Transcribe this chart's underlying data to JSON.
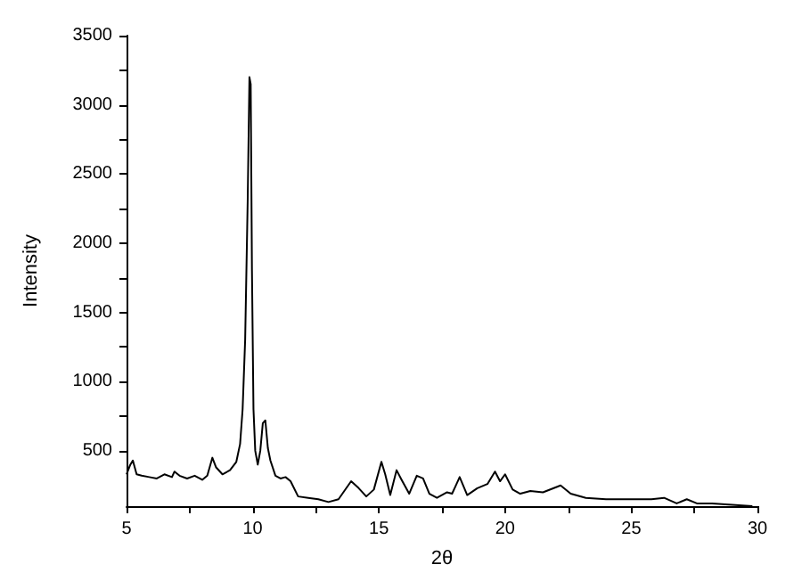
{
  "chart_data": {
    "type": "line",
    "xlabel": "2θ",
    "ylabel": "Intensity",
    "color": "#000000",
    "marker": "none",
    "grid": false,
    "x": [
      5.0,
      5.15,
      5.25,
      5.4,
      5.6,
      5.9,
      6.2,
      6.5,
      6.8,
      6.9,
      7.1,
      7.4,
      7.7,
      8.0,
      8.2,
      8.4,
      8.55,
      8.8,
      9.1,
      9.35,
      9.5,
      9.6,
      9.7,
      9.8,
      9.87,
      9.92,
      9.97,
      10.03,
      10.1,
      10.2,
      10.3,
      10.4,
      10.5,
      10.6,
      10.7,
      10.9,
      11.1,
      11.3,
      11.5,
      11.8,
      12.2,
      12.6,
      13.0,
      13.4,
      13.9,
      14.2,
      14.5,
      14.8,
      15.1,
      15.25,
      15.45,
      15.7,
      15.9,
      16.2,
      16.5,
      16.75,
      17.0,
      17.3,
      17.7,
      17.9,
      18.2,
      18.5,
      18.9,
      19.3,
      19.6,
      19.8,
      20.0,
      20.3,
      20.6,
      21.0,
      21.5,
      22.2,
      22.6,
      23.2,
      24.0,
      25.0,
      25.8,
      26.3,
      26.8,
      27.2,
      27.6,
      28.2,
      29.0,
      29.8
    ],
    "values": [
      330,
      400,
      430,
      330,
      320,
      310,
      300,
      330,
      310,
      350,
      320,
      300,
      320,
      290,
      320,
      450,
      380,
      330,
      360,
      420,
      550,
      800,
      1300,
      2300,
      3200,
      3150,
      1800,
      800,
      500,
      400,
      500,
      700,
      720,
      520,
      430,
      320,
      300,
      310,
      280,
      170,
      160,
      150,
      130,
      150,
      280,
      230,
      170,
      220,
      420,
      330,
      180,
      360,
      290,
      190,
      320,
      300,
      190,
      160,
      200,
      190,
      310,
      180,
      230,
      260,
      350,
      280,
      330,
      220,
      190,
      210,
      200,
      250,
      190,
      160,
      150,
      150,
      150,
      160,
      120,
      150,
      120,
      120,
      110,
      100
    ],
    "xlim": [
      5,
      30
    ],
    "ylim": [
      100,
      3500
    ],
    "xticks": [
      5,
      {
        "value": 7.5,
        "label": null
      },
      10,
      {
        "value": 12.5,
        "label": null
      },
      15,
      {
        "value": 17.5,
        "label": null
      },
      20,
      {
        "value": 22.5,
        "label": null
      },
      25,
      {
        "value": 27.5,
        "label": null
      },
      30
    ],
    "yticks": [
      500,
      {
        "value": 750,
        "label": null
      },
      1000,
      {
        "value": 1250,
        "label": null
      },
      1500,
      {
        "value": 1750,
        "label": null
      },
      2000,
      {
        "value": 2250,
        "label": null
      },
      2500,
      {
        "value": 2750,
        "label": null
      },
      3000,
      {
        "value": 3250,
        "label": null
      },
      3500
    ]
  }
}
